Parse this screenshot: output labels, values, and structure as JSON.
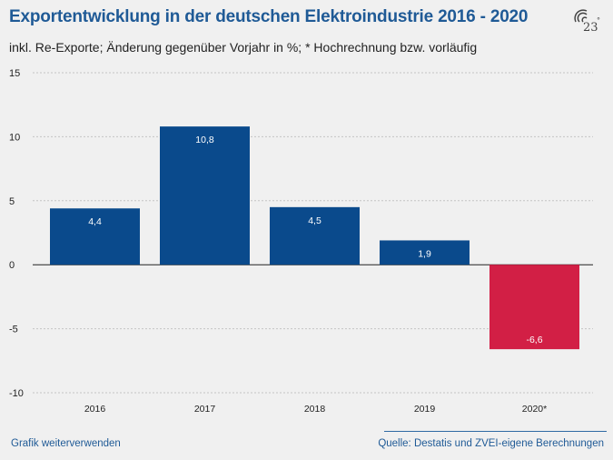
{
  "header": {
    "title": "Exportentwicklung in der deutschen Elektroindustrie 2016 - 2020",
    "subtitle": "inkl. Re-Exporte; Änderung gegenüber Vorjahr in %; * Hochrechnung bzw. vorläufig"
  },
  "logo": {
    "text": "23",
    "symbol": "°"
  },
  "footer": {
    "share_link": "Grafik weiterverwenden",
    "source": "Quelle: Destatis und ZVEI-eigene Berechnungen"
  },
  "colors": {
    "positive": "#0a4a8c",
    "negative": "#d21f45",
    "title": "#1f5a96"
  },
  "chart_data": {
    "type": "bar",
    "title": "Exportentwicklung in der deutschen Elektroindustrie 2016 - 2020",
    "xlabel": "",
    "ylabel": "",
    "categories": [
      "2016",
      "2017",
      "2018",
      "2019",
      "2020*"
    ],
    "values": [
      4.4,
      10.8,
      4.5,
      1.9,
      -6.6
    ],
    "value_labels": [
      "4,4",
      "10,8",
      "4,5",
      "1,9",
      "-6,6"
    ],
    "ylim": [
      -10,
      15
    ],
    "yticks": [
      15,
      10,
      5,
      0,
      -5,
      -10
    ],
    "ytick_labels": [
      "15",
      "10",
      "5",
      "0",
      "-5",
      "-10"
    ],
    "grid": true
  }
}
